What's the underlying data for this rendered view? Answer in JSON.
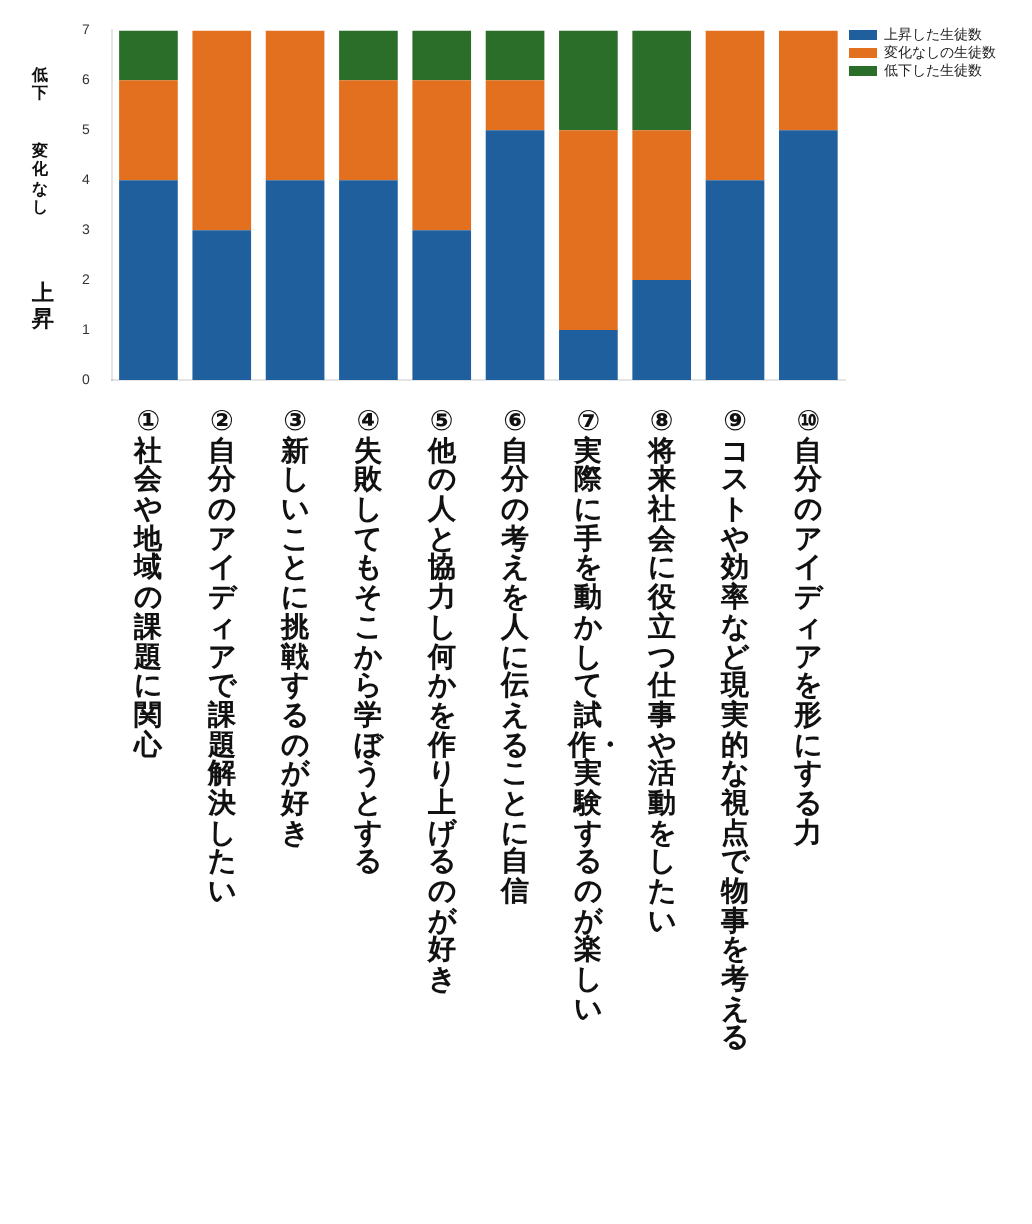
{
  "chart_data": {
    "type": "bar",
    "stacked": true,
    "categories": [
      "①社会や地域の課題に関心",
      "②自分のアイディアで課題解決したい",
      "③新しいことに挑戦するのが好き",
      "④失敗してもそこから学ぼうとする",
      "⑤他の人と協力し何かを作り上げるのが好き",
      "⑥自分の考えを人に伝えることに自信",
      "⑦実際に手を動かして試作・実験するのが楽しい",
      "⑧将来社会に役立つ仕事や活動をしたい",
      "⑨コストや効率など現実的な視点で物事を考える",
      "⑩自分のアイディアを形にする力"
    ],
    "series": [
      {
        "name": "上昇した生徒数",
        "color": "#1f5f9e",
        "values": [
          4,
          3,
          4,
          4,
          3,
          5,
          1,
          2,
          4,
          5
        ]
      },
      {
        "name": "変化なしの生徒数",
        "color": "#e3701f",
        "values": [
          2,
          4,
          3,
          2,
          3,
          1,
          4,
          3,
          3,
          2
        ]
      },
      {
        "name": "低下した生徒数",
        "color": "#2a6e2a",
        "values": [
          1,
          0,
          0,
          1,
          1,
          1,
          2,
          2,
          0,
          0
        ]
      }
    ],
    "ylim": [
      0,
      7
    ],
    "yticks": [
      0,
      1,
      2,
      3,
      4,
      5,
      6,
      7
    ],
    "grid": false,
    "legend": "top right",
    "annotations": [
      "低下",
      "変化なし",
      "上昇"
    ]
  }
}
